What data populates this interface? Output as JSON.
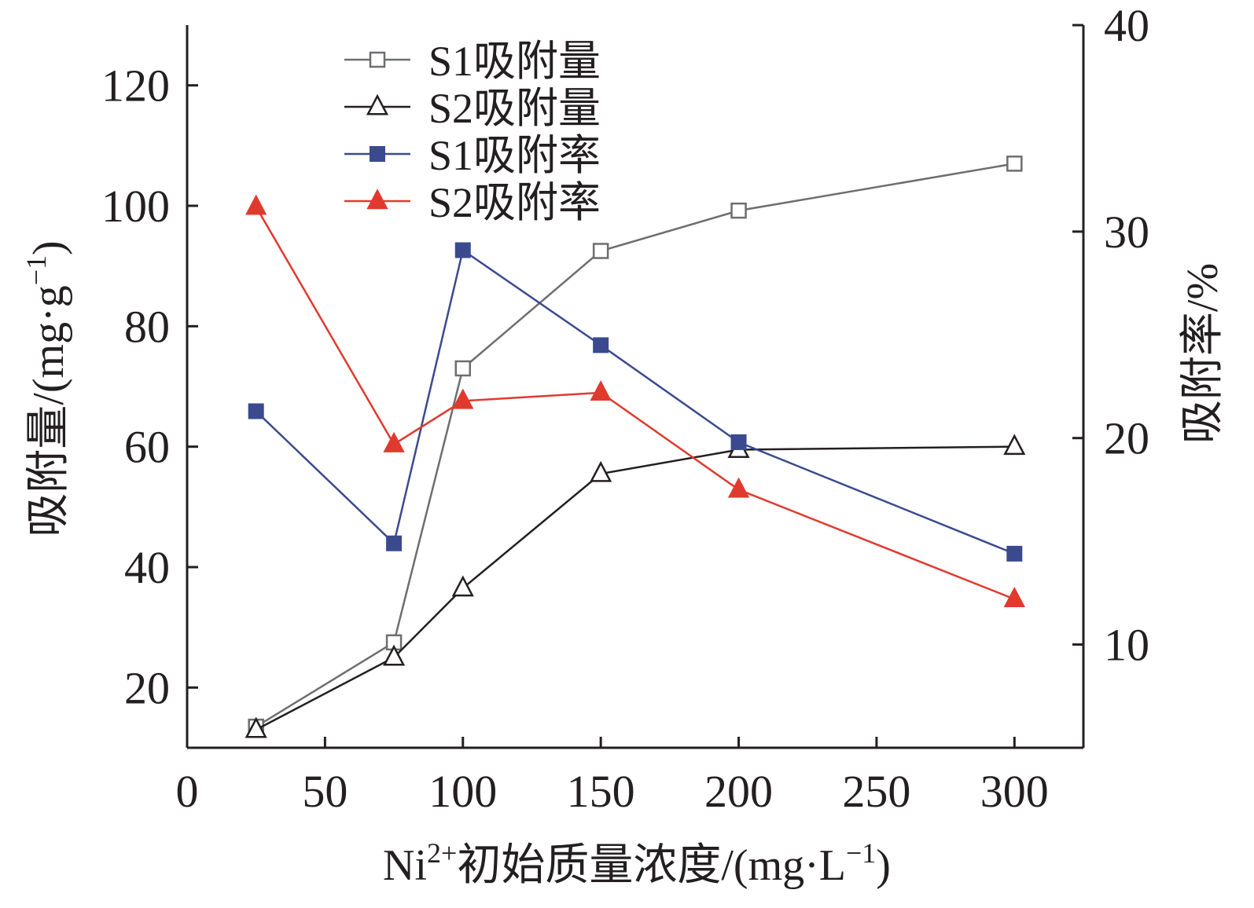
{
  "chart_data": {
    "type": "line",
    "xlabel": {
      "prefix": "Ni",
      "sup": "2+",
      "text": "初始质量浓度/(mg·L",
      "unit_sup": "−1",
      "suffix": ")"
    },
    "ylabel_left": {
      "text": "吸附量/(mg·g",
      "unit_sup": "−1",
      "suffix": ")"
    },
    "ylabel_right": "吸附率/%",
    "x_ticks": [
      0,
      50,
      100,
      150,
      200,
      250,
      300
    ],
    "y_left_ticks": [
      20,
      40,
      60,
      80,
      100,
      120
    ],
    "y_right_ticks": [
      10,
      20,
      30,
      40
    ],
    "xlim": [
      0,
      325
    ],
    "ylim_left": [
      10,
      130
    ],
    "ylim_right": [
      5,
      40
    ],
    "series": [
      {
        "name": "S1吸附量",
        "axis": "left",
        "marker": "square-open",
        "color": "#6d6e70",
        "points": [
          [
            25,
            13.5
          ],
          [
            75,
            27.5
          ],
          [
            100,
            73
          ],
          [
            150,
            92.5
          ],
          [
            200,
            99.2
          ],
          [
            300,
            107
          ]
        ]
      },
      {
        "name": "S2吸附量",
        "axis": "left",
        "marker": "triangle-open",
        "color": "#231f20",
        "points": [
          [
            25,
            13
          ],
          [
            75,
            25
          ],
          [
            100,
            36.5
          ],
          [
            150,
            55.5
          ],
          [
            200,
            59.5
          ],
          [
            300,
            60
          ]
        ]
      },
      {
        "name": "S1吸附率",
        "axis": "right",
        "marker": "square-filled",
        "color": "#3b4a8f",
        "points": [
          [
            25,
            21.3
          ],
          [
            75,
            14.9
          ],
          [
            100,
            29.1
          ],
          [
            150,
            24.5
          ],
          [
            200,
            19.8
          ],
          [
            300,
            14.4
          ]
        ]
      },
      {
        "name": "S2吸附率",
        "axis": "right",
        "marker": "triangle-filled",
        "color": "#e03a2e",
        "points": [
          [
            25,
            31.2
          ],
          [
            75,
            19.7
          ],
          [
            100,
            21.8
          ],
          [
            150,
            22.2
          ],
          [
            200,
            17.5
          ],
          [
            300,
            12.2
          ]
        ]
      }
    ],
    "legend_position": "top-left"
  }
}
